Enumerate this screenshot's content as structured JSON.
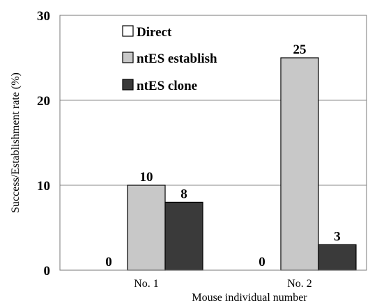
{
  "chart_data": {
    "type": "bar",
    "title": "",
    "xlabel": "Mouse individual number",
    "ylabel": "Success/Establishment rate (%)",
    "categories": [
      "No. 1",
      "No. 2"
    ],
    "ylim": [
      0,
      30
    ],
    "yticks": [
      "0",
      "10",
      "20",
      "30"
    ],
    "grid": true,
    "legend_position": "top-left",
    "series": [
      {
        "name": "Direct",
        "values": [
          0,
          0
        ],
        "labels": [
          "0",
          "0"
        ],
        "color": "#ffffff"
      },
      {
        "name": "ntES establish",
        "values": [
          10,
          25
        ],
        "labels": [
          "10",
          "25"
        ],
        "color": "#c8c8c8"
      },
      {
        "name": "ntES clone",
        "values": [
          8,
          3
        ],
        "labels": [
          "8",
          "3"
        ],
        "color": "#3a3a3a"
      }
    ]
  }
}
